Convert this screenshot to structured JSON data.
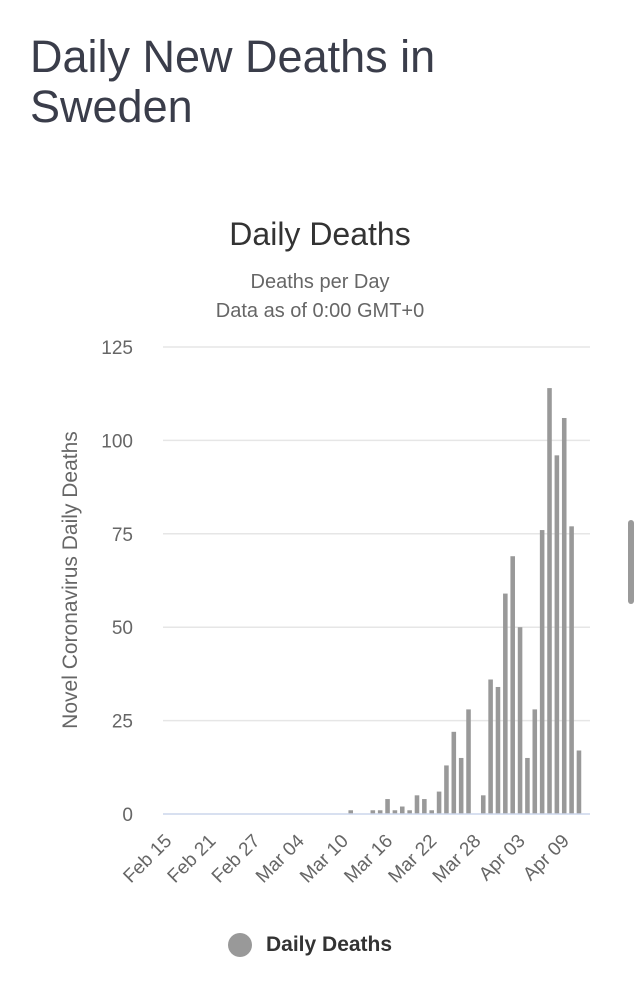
{
  "page": {
    "title": "Daily New Deaths in Sweden"
  },
  "chart_data": {
    "type": "bar",
    "title": "Daily Deaths",
    "subtitle_lines": [
      "Deaths per Day",
      "Data as of 0:00 GMT+0"
    ],
    "xlabel": "",
    "ylabel": "Novel Coronavirus Daily Deaths",
    "ylim": [
      0,
      125
    ],
    "yticks": [
      0,
      25,
      50,
      75,
      100,
      125
    ],
    "xtick_labels": [
      "Feb 15",
      "Feb 21",
      "Feb 27",
      "Mar 04",
      "Mar 10",
      "Mar 16",
      "Mar 22",
      "Mar 28",
      "Apr 03",
      "Apr 09"
    ],
    "xtick_interval_days": 6,
    "categories": [
      "Feb 15",
      "Feb 16",
      "Feb 17",
      "Feb 18",
      "Feb 19",
      "Feb 20",
      "Feb 21",
      "Feb 22",
      "Feb 23",
      "Feb 24",
      "Feb 25",
      "Feb 26",
      "Feb 27",
      "Feb 28",
      "Feb 29",
      "Mar 01",
      "Mar 02",
      "Mar 03",
      "Mar 04",
      "Mar 05",
      "Mar 06",
      "Mar 07",
      "Mar 08",
      "Mar 09",
      "Mar 10",
      "Mar 11",
      "Mar 12",
      "Mar 13",
      "Mar 14",
      "Mar 15",
      "Mar 16",
      "Mar 17",
      "Mar 18",
      "Mar 19",
      "Mar 20",
      "Mar 21",
      "Mar 22",
      "Mar 23",
      "Mar 24",
      "Mar 25",
      "Mar 26",
      "Mar 27",
      "Mar 28",
      "Mar 29",
      "Mar 30",
      "Mar 31",
      "Apr 01",
      "Apr 02",
      "Apr 03",
      "Apr 04",
      "Apr 05",
      "Apr 06",
      "Apr 07",
      "Apr 08",
      "Apr 09",
      "Apr 10",
      "Apr 11",
      "Apr 12"
    ],
    "series": [
      {
        "name": "Daily Deaths",
        "color": "#999999",
        "values": [
          0,
          0,
          0,
          0,
          0,
          0,
          0,
          0,
          0,
          0,
          0,
          0,
          0,
          0,
          0,
          0,
          0,
          0,
          0,
          0,
          0,
          0,
          0,
          0,
          0,
          1,
          0,
          0,
          1,
          1,
          4,
          1,
          2,
          1,
          5,
          4,
          1,
          6,
          13,
          22,
          15,
          28,
          0,
          5,
          36,
          34,
          59,
          69,
          50,
          15,
          28,
          76,
          114,
          96,
          106,
          77,
          17,
          0
        ]
      }
    ],
    "grid": true,
    "legend_position": "bottom-center"
  }
}
